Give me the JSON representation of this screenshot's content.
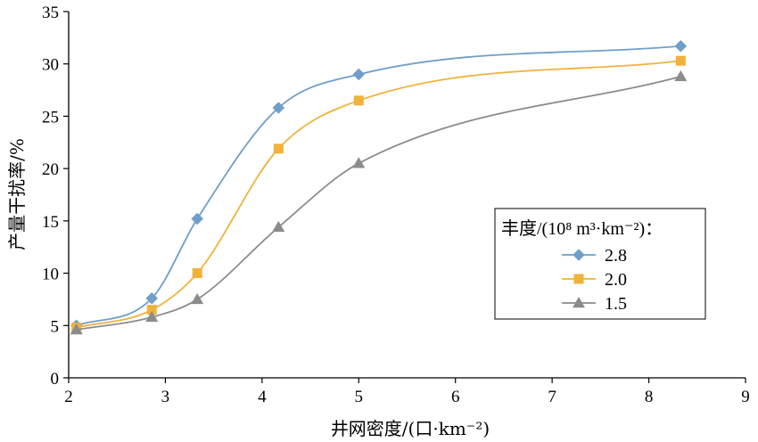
{
  "chart_data": {
    "type": "line",
    "xlabel": "井网密度/(口·km⁻²)",
    "ylabel": "产量干扰率/%",
    "xlim": [
      2,
      9
    ],
    "ylim": [
      0,
      35
    ],
    "x_ticks": [
      "2",
      "3",
      "4",
      "5",
      "6",
      "7",
      "8",
      "9"
    ],
    "y_ticks": [
      "0",
      "5",
      "10",
      "15",
      "20",
      "25",
      "30",
      "35"
    ],
    "grid": false,
    "legend_position": "right-middle",
    "legend_title": "丰度/(10⁸ m³·km⁻²)：",
    "series": [
      {
        "name": "2.8",
        "marker": "diamond",
        "color": "#6f9fc8",
        "x": [
          2.08,
          2.86,
          3.33,
          4.17,
          5.0,
          8.33
        ],
        "y": [
          5.0,
          7.6,
          15.2,
          25.8,
          29.0,
          31.7
        ]
      },
      {
        "name": "2.0",
        "marker": "square",
        "color": "#f0b23a",
        "x": [
          2.08,
          2.86,
          3.33,
          4.17,
          5.0,
          8.33
        ],
        "y": [
          4.8,
          6.5,
          10.0,
          21.9,
          26.5,
          30.3
        ]
      },
      {
        "name": "1.5",
        "marker": "triangle",
        "color": "#8c8c8c",
        "x": [
          2.08,
          2.86,
          3.33,
          4.17,
          5.0,
          8.33
        ],
        "y": [
          4.6,
          5.8,
          7.5,
          14.4,
          20.5,
          28.8
        ]
      }
    ]
  }
}
